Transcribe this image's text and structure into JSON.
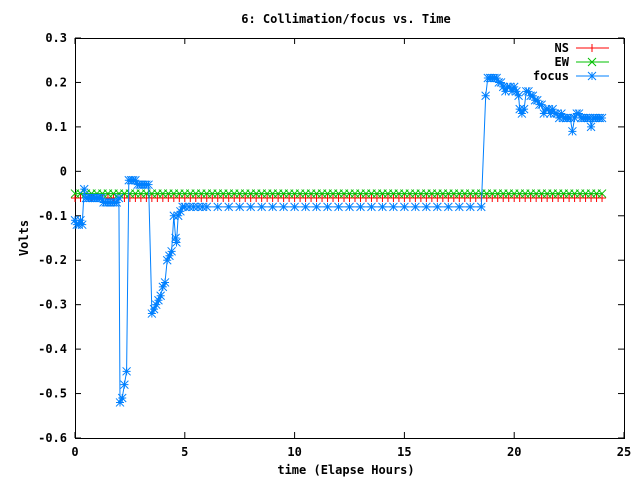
{
  "chart_data": {
    "type": "line",
    "title": "6: Collimation/focus vs. Time",
    "xlabel": "time (Elapse Hours)",
    "ylabel": "Volts",
    "xlim": [
      0,
      25
    ],
    "ylim": [
      -0.6,
      0.3
    ],
    "x_ticks": [
      0,
      5,
      10,
      15,
      20,
      25
    ],
    "y_ticks": [
      -0.6,
      -0.5,
      -0.4,
      -0.3,
      -0.2,
      -0.1,
      0,
      0.1,
      0.2,
      0.3
    ],
    "x_tick_labels": [
      "0",
      "5",
      "10",
      "15",
      "20",
      "25"
    ],
    "y_tick_labels": [
      "-0.6",
      "-0.5",
      "-0.4",
      "-0.3",
      "-0.2",
      "-0.1",
      "0",
      "0.1",
      "0.2",
      "0.3"
    ],
    "grid": false,
    "legend_position": "top-right",
    "series": [
      {
        "name": "NS",
        "color": "#ff0000",
        "marker": "plus",
        "flat": {
          "x_start": 0,
          "x_end": 24,
          "count": 97,
          "value": -0.06
        }
      },
      {
        "name": "EW",
        "color": "#00c000",
        "marker": "cross",
        "flat": {
          "x_start": 0,
          "x_end": 24,
          "count": 97,
          "value": -0.05
        }
      },
      {
        "name": "focus",
        "color": "#0080ff",
        "marker": "star",
        "points": [
          [
            0,
            -0.11
          ],
          [
            0.08,
            -0.12
          ],
          [
            0.17,
            -0.12
          ],
          [
            0.25,
            -0.11
          ],
          [
            0.33,
            -0.12
          ],
          [
            0.42,
            -0.04
          ],
          [
            0.5,
            -0.06
          ],
          [
            0.6,
            -0.06
          ],
          [
            0.7,
            -0.06
          ],
          [
            0.8,
            -0.06
          ],
          [
            0.9,
            -0.06
          ],
          [
            1.0,
            -0.06
          ],
          [
            1.1,
            -0.06
          ],
          [
            1.2,
            -0.06
          ],
          [
            1.3,
            -0.07
          ],
          [
            1.4,
            -0.07
          ],
          [
            1.5,
            -0.07
          ],
          [
            1.6,
            -0.07
          ],
          [
            1.7,
            -0.07
          ],
          [
            1.8,
            -0.07
          ],
          [
            1.9,
            -0.07
          ],
          [
            2.0,
            -0.06
          ],
          [
            2.05,
            -0.52
          ],
          [
            2.15,
            -0.51
          ],
          [
            2.25,
            -0.48
          ],
          [
            2.35,
            -0.45
          ],
          [
            2.45,
            -0.02
          ],
          [
            2.55,
            -0.02
          ],
          [
            2.65,
            -0.02
          ],
          [
            2.75,
            -0.02
          ],
          [
            2.85,
            -0.03
          ],
          [
            2.95,
            -0.03
          ],
          [
            3.05,
            -0.03
          ],
          [
            3.15,
            -0.03
          ],
          [
            3.25,
            -0.03
          ],
          [
            3.35,
            -0.03
          ],
          [
            3.5,
            -0.32
          ],
          [
            3.6,
            -0.31
          ],
          [
            3.7,
            -0.3
          ],
          [
            3.8,
            -0.29
          ],
          [
            3.9,
            -0.28
          ],
          [
            4.0,
            -0.26
          ],
          [
            4.1,
            -0.25
          ],
          [
            4.2,
            -0.2
          ],
          [
            4.3,
            -0.19
          ],
          [
            4.4,
            -0.18
          ],
          [
            4.5,
            -0.1
          ],
          [
            4.58,
            -0.15
          ],
          [
            4.62,
            -0.16
          ],
          [
            4.7,
            -0.1
          ],
          [
            4.8,
            -0.09
          ],
          [
            4.9,
            -0.08
          ],
          [
            5.0,
            -0.08
          ],
          [
            5.2,
            -0.08
          ],
          [
            5.4,
            -0.08
          ],
          [
            5.6,
            -0.08
          ],
          [
            5.8,
            -0.08
          ],
          [
            6.0,
            -0.08
          ],
          [
            6.5,
            -0.08
          ],
          [
            7,
            -0.08
          ],
          [
            7.5,
            -0.08
          ],
          [
            8,
            -0.08
          ],
          [
            8.5,
            -0.08
          ],
          [
            9,
            -0.08
          ],
          [
            9.5,
            -0.08
          ],
          [
            10,
            -0.08
          ],
          [
            10.5,
            -0.08
          ],
          [
            11,
            -0.08
          ],
          [
            11.5,
            -0.08
          ],
          [
            12,
            -0.08
          ],
          [
            12.5,
            -0.08
          ],
          [
            13,
            -0.08
          ],
          [
            13.5,
            -0.08
          ],
          [
            14,
            -0.08
          ],
          [
            14.5,
            -0.08
          ],
          [
            15,
            -0.08
          ],
          [
            15.5,
            -0.08
          ],
          [
            16,
            -0.08
          ],
          [
            16.5,
            -0.08
          ],
          [
            17,
            -0.08
          ],
          [
            17.5,
            -0.08
          ],
          [
            18,
            -0.08
          ],
          [
            18.5,
            -0.08
          ],
          [
            18.7,
            0.17
          ],
          [
            18.8,
            0.21
          ],
          [
            18.9,
            0.21
          ],
          [
            19.0,
            0.21
          ],
          [
            19.1,
            0.21
          ],
          [
            19.2,
            0.21
          ],
          [
            19.3,
            0.2
          ],
          [
            19.4,
            0.2
          ],
          [
            19.5,
            0.19
          ],
          [
            19.6,
            0.18
          ],
          [
            19.7,
            0.19
          ],
          [
            19.8,
            0.19
          ],
          [
            19.9,
            0.18
          ],
          [
            20.0,
            0.19
          ],
          [
            20.1,
            0.18
          ],
          [
            20.2,
            0.17
          ],
          [
            20.25,
            0.14
          ],
          [
            20.35,
            0.13
          ],
          [
            20.45,
            0.14
          ],
          [
            20.55,
            0.18
          ],
          [
            20.65,
            0.18
          ],
          [
            20.75,
            0.17
          ],
          [
            20.85,
            0.17
          ],
          [
            20.95,
            0.16
          ],
          [
            21.05,
            0.16
          ],
          [
            21.15,
            0.15
          ],
          [
            21.25,
            0.15
          ],
          [
            21.35,
            0.13
          ],
          [
            21.45,
            0.14
          ],
          [
            21.55,
            0.14
          ],
          [
            21.65,
            0.13
          ],
          [
            21.75,
            0.14
          ],
          [
            21.85,
            0.13
          ],
          [
            21.95,
            0.13
          ],
          [
            22.05,
            0.12
          ],
          [
            22.15,
            0.13
          ],
          [
            22.25,
            0.12
          ],
          [
            22.35,
            0.12
          ],
          [
            22.45,
            0.12
          ],
          [
            22.55,
            0.12
          ],
          [
            22.65,
            0.09
          ],
          [
            22.75,
            0.12
          ],
          [
            22.85,
            0.13
          ],
          [
            22.95,
            0.13
          ],
          [
            23.05,
            0.12
          ],
          [
            23.15,
            0.12
          ],
          [
            23.25,
            0.12
          ],
          [
            23.35,
            0.12
          ],
          [
            23.45,
            0.12
          ],
          [
            23.5,
            0.1
          ],
          [
            23.6,
            0.12
          ],
          [
            23.7,
            0.12
          ],
          [
            23.8,
            0.12
          ],
          [
            23.9,
            0.12
          ],
          [
            24.0,
            0.12
          ]
        ]
      }
    ]
  }
}
